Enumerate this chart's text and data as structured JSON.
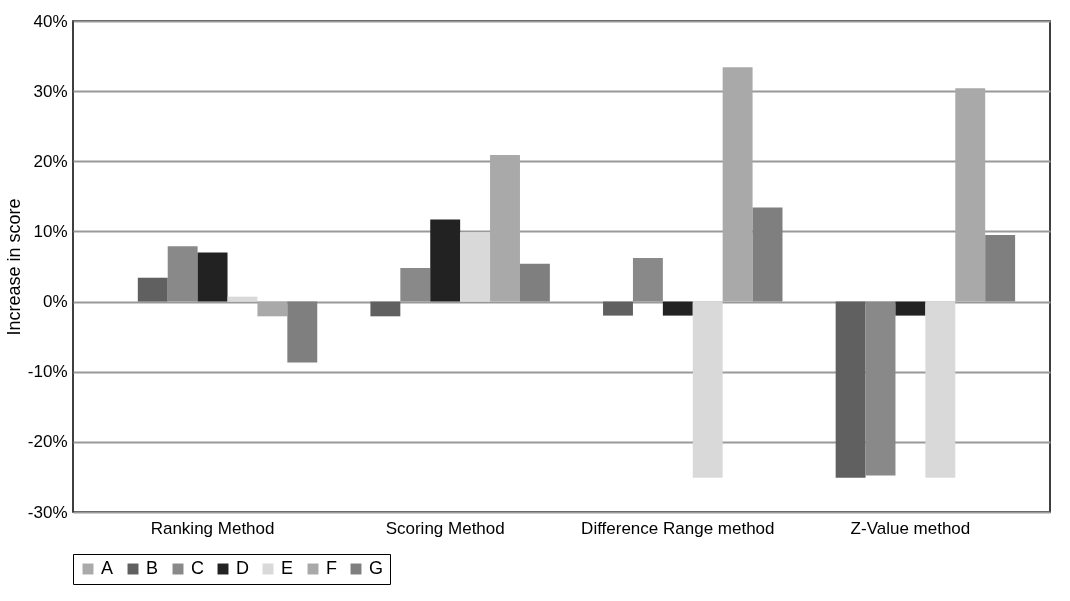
{
  "chart_data": {
    "type": "bar",
    "ylabel": "Increase in score",
    "categories": [
      "Ranking Method",
      "Scoring Method",
      "Difference Range method",
      "Z-Value method"
    ],
    "series": [
      {
        "name": "A",
        "color": "#aaaaaa",
        "values": [
          0,
          0,
          0,
          0
        ]
      },
      {
        "name": "B",
        "color": "#606060",
        "values": [
          3.4,
          -2.1,
          -2.0,
          -25.1
        ]
      },
      {
        "name": "C",
        "color": "#898989",
        "values": [
          7.9,
          4.8,
          6.2,
          -24.8
        ]
      },
      {
        "name": "D",
        "color": "#222222",
        "values": [
          7.0,
          11.7,
          -2.0,
          -2.0
        ]
      },
      {
        "name": "E",
        "color": "#d9d9d9",
        "values": [
          0.7,
          9.9,
          -25.1,
          -25.1
        ]
      },
      {
        "name": "F",
        "color": "#a9a9a9",
        "values": [
          -2.1,
          20.9,
          33.4,
          30.4
        ]
      },
      {
        "name": "G",
        "color": "#7f7f7f",
        "values": [
          -8.7,
          5.4,
          13.4,
          9.5
        ]
      }
    ],
    "ylim": [
      -30,
      40
    ],
    "yticks": [
      {
        "value": -30,
        "label": "-30%"
      },
      {
        "value": -20,
        "label": "-20%"
      },
      {
        "value": -10,
        "label": "-10%"
      },
      {
        "value": 0,
        "label": "0%"
      },
      {
        "value": 10,
        "label": "10%"
      },
      {
        "value": 20,
        "label": "20%"
      },
      {
        "value": 30,
        "label": "30%"
      },
      {
        "value": 40,
        "label": "40%"
      }
    ],
    "grid": "y",
    "legend": "bottom"
  }
}
